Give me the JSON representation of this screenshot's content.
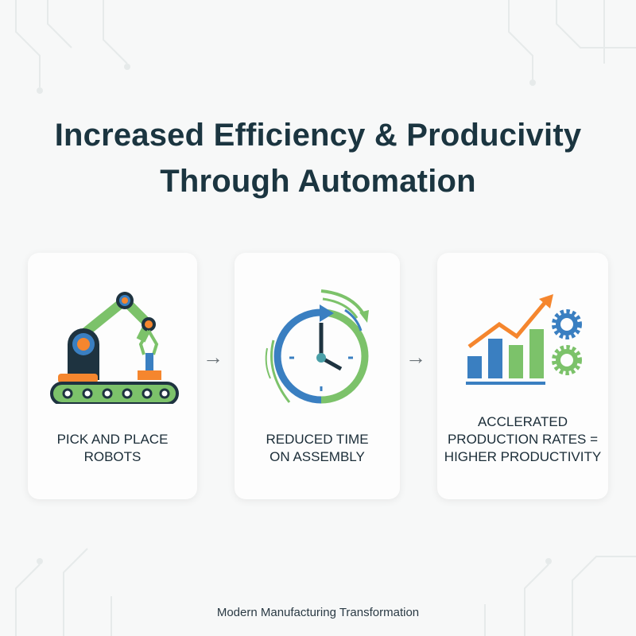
{
  "title": {
    "line1": "Increased Efficiency & Producivity",
    "line2": "Through Automation"
  },
  "colors": {
    "title": "#1b3540",
    "blue": "#3a7fc1",
    "green": "#7cc26a",
    "orange": "#f5862e",
    "navy": "#1e3340"
  },
  "cards": [
    {
      "icon": "robot-arm-conveyor-icon",
      "lines": [
        "PICK AND PLACE",
        "ROBOTS"
      ]
    },
    {
      "icon": "clock-cycle-icon",
      "lines": [
        "REDUCED TIME",
        "ON ASSEMBLY"
      ]
    },
    {
      "icon": "bar-chart-gears-icon",
      "lines": [
        "ACCLERATED",
        "PRODUCTION RATES =",
        "HIGHER PRODUCTIVITY"
      ]
    }
  ],
  "arrows": [
    "→",
    "→"
  ],
  "footer": "Modern Manufacturing Transformation"
}
